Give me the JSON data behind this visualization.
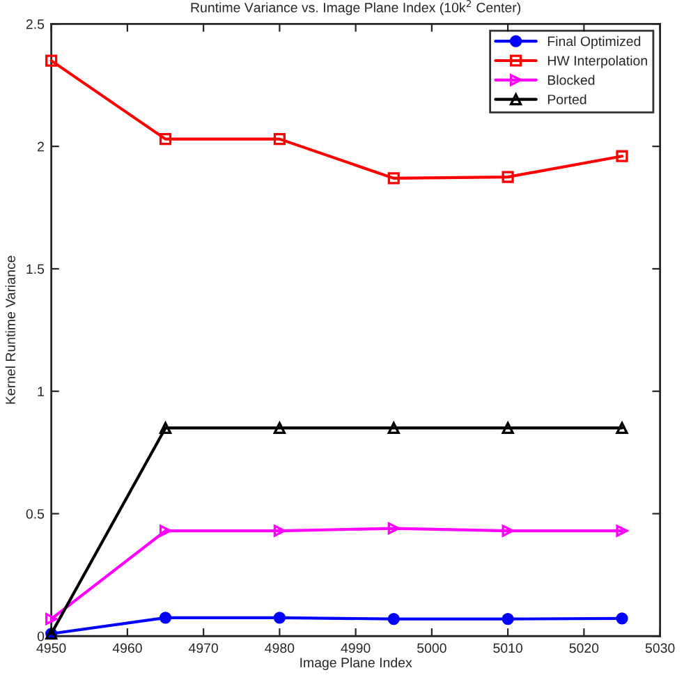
{
  "chart_data": {
    "type": "line",
    "title": "Runtime Variance vs. Image Plane Index (10k$^{2}$ Center)",
    "xlabel": "Image Plane Index",
    "ylabel": "Kernel Runtime Variance",
    "x": [
      4950,
      4965,
      4980,
      4995,
      5010,
      5025
    ],
    "series": [
      {
        "name": "Final Optimized",
        "color": "#0000ff",
        "marker": "circle",
        "values": [
          0.01,
          0.075,
          0.075,
          0.07,
          0.07,
          0.072
        ]
      },
      {
        "name": "HW Interpolation",
        "color": "#ff0000",
        "marker": "square",
        "values": [
          2.35,
          2.03,
          2.03,
          1.87,
          1.875,
          1.96
        ]
      },
      {
        "name": "Blocked",
        "color": "#ff00ff",
        "marker": "triangle-right",
        "values": [
          0.07,
          0.43,
          0.43,
          0.44,
          0.43,
          0.43
        ]
      },
      {
        "name": "Ported",
        "color": "#000000",
        "marker": "triangle",
        "values": [
          0.01,
          0.85,
          0.85,
          0.85,
          0.85,
          0.85
        ]
      }
    ],
    "xlim": [
      4950,
      5030
    ],
    "xticks": [
      4950,
      4960,
      4970,
      4980,
      4990,
      5000,
      5010,
      5020,
      5030
    ],
    "ylim": [
      0,
      2.5
    ],
    "yticks": [
      0,
      0.5,
      1,
      1.5,
      2,
      2.5
    ],
    "grid": false,
    "legend": "top right",
    "line_style": "solid"
  }
}
